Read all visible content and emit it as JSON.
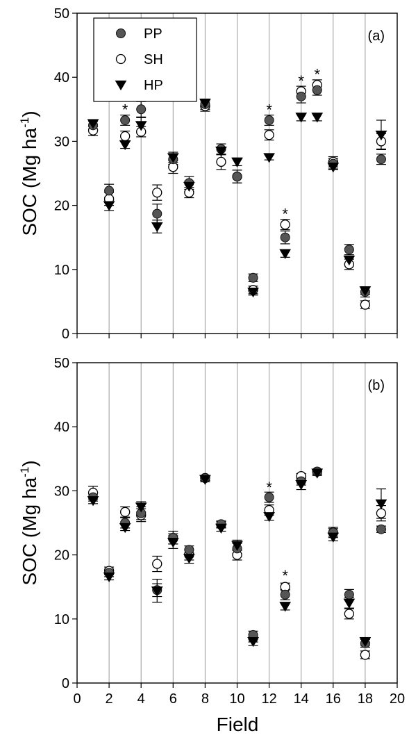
{
  "figure": {
    "xlabel": "Field",
    "x_ticks": [
      0,
      2,
      4,
      6,
      8,
      10,
      12,
      14,
      16,
      18,
      20
    ],
    "y_ticks": [
      0,
      10,
      20,
      30,
      40,
      50
    ],
    "vertical_gridlines": [
      2,
      4,
      6,
      8,
      10,
      12,
      14,
      16,
      18
    ],
    "legend_placement": "top-left (panel a)",
    "colors": {
      "PP": "#555555",
      "SH": "#ffffff",
      "HP": "#000000"
    },
    "markers": {
      "PP": "filled-circle",
      "SH": "open-circle",
      "HP": "filled-down-triangle"
    }
  },
  "chart_data": [
    {
      "type": "scatter",
      "panel_label": "(a)",
      "ylabel": "SOC  (Mg ha",
      "ylabel_sup": "-1",
      "ylabel_close": ")",
      "xlim": [
        0,
        20
      ],
      "ylim": [
        0,
        50
      ],
      "grid": "vertical at even x",
      "legend": "top-left",
      "x": [
        1,
        2,
        3,
        4,
        5,
        6,
        7,
        8,
        9,
        10,
        11,
        12,
        13,
        14,
        15,
        16,
        17,
        18,
        19
      ],
      "series": [
        {
          "name": "PP",
          "values": [
            32.5,
            22.3,
            33.3,
            35.0,
            18.7,
            27.2,
            23.5,
            35.8,
            28.8,
            24.5,
            8.7,
            33.3,
            15.0,
            37.0,
            38.0,
            26.5,
            13.1,
            6.5,
            27.2
          ],
          "errors": [
            0.6,
            1.0,
            0.8,
            1.2,
            1.5,
            0.8,
            1.0,
            0.8,
            0.8,
            1.0,
            0.6,
            0.8,
            1.0,
            1.0,
            0.8,
            0.8,
            0.8,
            0.8,
            0.8
          ]
        },
        {
          "name": "SH",
          "values": [
            31.7,
            21.0,
            30.8,
            31.5,
            22.0,
            26.0,
            22.0,
            35.5,
            26.8,
            24.5,
            6.8,
            31.0,
            17.0,
            37.8,
            38.8,
            26.8,
            10.8,
            4.5,
            30.0
          ],
          "errors": [
            0.8,
            1.0,
            0.8,
            0.8,
            1.2,
            1.0,
            0.8,
            0.8,
            1.2,
            1.0,
            0.6,
            0.8,
            0.8,
            0.8,
            0.8,
            0.8,
            0.8,
            0.6,
            1.2
          ]
        },
        {
          "name": "HP",
          "values": [
            32.8,
            20.0,
            29.5,
            32.5,
            16.7,
            27.5,
            23.0,
            36.0,
            28.5,
            26.8,
            6.5,
            27.5,
            12.5,
            33.8,
            33.8,
            26.0,
            11.5,
            6.7,
            31.0
          ],
          "errors": [
            0.5,
            0.8,
            0.6,
            1.2,
            1.0,
            0.8,
            0.8,
            0.6,
            0.6,
            0.6,
            0.5,
            0.4,
            0.6,
            0.6,
            0.6,
            0.4,
            0.6,
            0.6,
            2.3
          ]
        }
      ],
      "significance_markers": [
        {
          "x": 3,
          "y": 35.1,
          "label": "*"
        },
        {
          "x": 12,
          "y": 35.1,
          "label": "*"
        },
        {
          "x": 13,
          "y": 18.8,
          "label": "*"
        },
        {
          "x": 14,
          "y": 39.6,
          "label": "*"
        },
        {
          "x": 15,
          "y": 40.6,
          "label": "*"
        }
      ]
    },
    {
      "type": "scatter",
      "panel_label": "(b)",
      "ylabel": "SOC  (Mg ha",
      "ylabel_sup": "-1",
      "ylabel_close": ")",
      "xlim": [
        0,
        20
      ],
      "ylim": [
        0,
        50
      ],
      "grid": "vertical at even x",
      "legend": "none",
      "x": [
        1,
        2,
        3,
        4,
        5,
        6,
        7,
        8,
        9,
        10,
        11,
        12,
        13,
        14,
        15,
        16,
        17,
        18,
        19
      ],
      "series": [
        {
          "name": "PP",
          "values": [
            29.0,
            17.2,
            25.0,
            26.5,
            14.5,
            22.7,
            20.8,
            32.0,
            24.8,
            21.0,
            7.5,
            29.0,
            13.8,
            31.5,
            33.0,
            23.5,
            13.8,
            6.2,
            24.0
          ],
          "errors": [
            0.6,
            0.6,
            0.8,
            1.0,
            1.0,
            1.0,
            0.6,
            0.4,
            0.5,
            0.8,
            0.6,
            0.8,
            0.8,
            0.6,
            0.4,
            0.8,
            0.8,
            0.6,
            0.5
          ]
        },
        {
          "name": "SH",
          "values": [
            29.7,
            17.5,
            26.7,
            26.2,
            18.6,
            22.5,
            20.0,
            32.0,
            24.7,
            20.0,
            7.0,
            27.0,
            15.0,
            32.3,
            33.0,
            23.5,
            10.8,
            4.4,
            26.5
          ],
          "errors": [
            1.0,
            0.6,
            0.8,
            1.0,
            1.2,
            0.8,
            0.8,
            0.4,
            0.5,
            0.8,
            0.6,
            0.8,
            0.6,
            0.4,
            0.4,
            0.6,
            0.8,
            0.6,
            1.2
          ]
        },
        {
          "name": "HP",
          "values": [
            28.5,
            16.6,
            24.3,
            27.5,
            14.4,
            22.0,
            19.5,
            31.8,
            24.2,
            21.5,
            6.5,
            26.0,
            12.0,
            31.0,
            32.8,
            22.8,
            12.5,
            6.5,
            28.0
          ],
          "errors": [
            0.5,
            0.5,
            0.5,
            0.8,
            1.8,
            1.0,
            0.8,
            0.4,
            0.5,
            0.8,
            0.6,
            0.6,
            0.6,
            0.8,
            0.4,
            0.6,
            0.8,
            0.6,
            2.3
          ]
        }
      ],
      "significance_markers": [
        {
          "x": 12,
          "y": 30.7,
          "label": "*"
        },
        {
          "x": 13,
          "y": 16.9,
          "label": "*"
        }
      ]
    }
  ]
}
